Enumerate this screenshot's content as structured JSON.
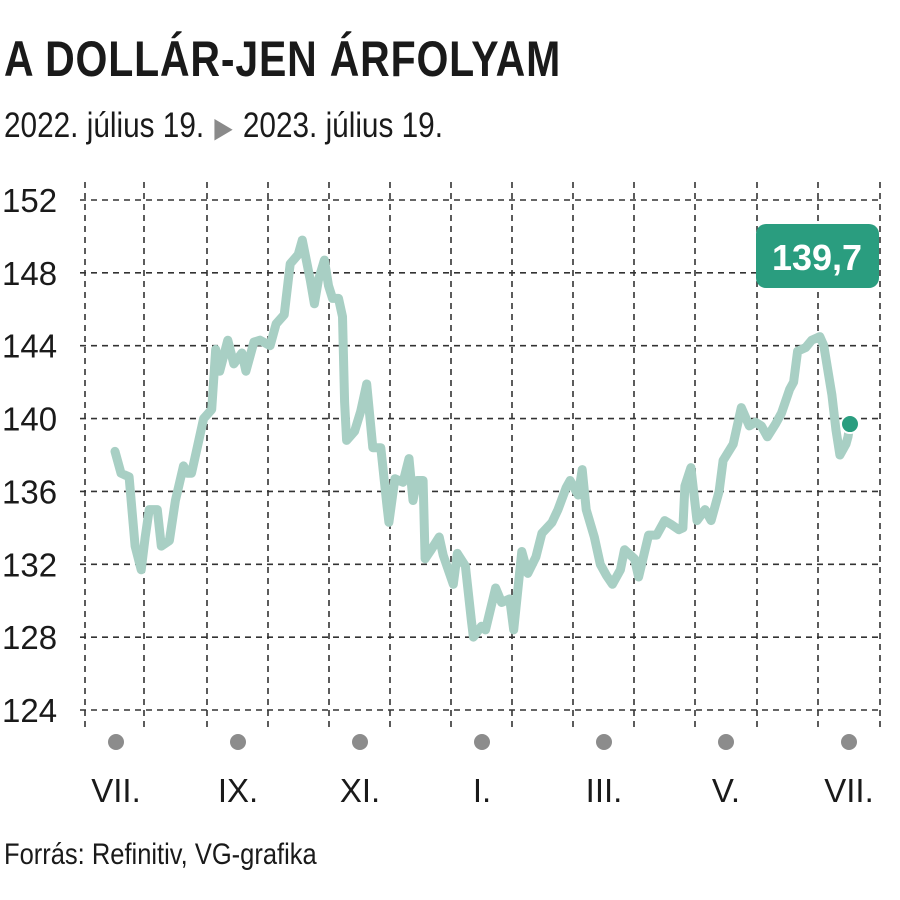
{
  "title": "A DOLLÁR-JEN ÁRFOLYAM",
  "subtitle": {
    "from": "2022. július 19.",
    "arrow": "▶",
    "to": "2023. július 19."
  },
  "source": "Forrás: Refinitiv, VG-grafika",
  "colors": {
    "line": "#a8cfc4",
    "accent": "#2a9d7f",
    "grid": "#333333",
    "month_dot": "#8c8c8c"
  },
  "chart_data": {
    "type": "line",
    "title": "A DOLLÁR-JEN ÁRFOLYAM",
    "xlabel": "",
    "ylabel": "",
    "ylim": [
      124,
      152
    ],
    "yticks": [
      152,
      148,
      144,
      140,
      136,
      132,
      128,
      124
    ],
    "ytick_labels": [
      "152",
      "148",
      "144",
      "140",
      "136",
      "132",
      "128",
      "124"
    ],
    "xtick_labels": [
      "VII.",
      "IX.",
      "XI.",
      "I.",
      "III.",
      "V.",
      "VII."
    ],
    "x_range": [
      "2022-07-19",
      "2023-07-19"
    ],
    "grid": true,
    "last_value_label": "139,7",
    "series": [
      {
        "values": [
          [
            "2022-07-19",
            138.2
          ],
          [
            "2022-07-22",
            137.0
          ],
          [
            "2022-07-26",
            136.8
          ],
          [
            "2022-07-29",
            133.0
          ],
          [
            "2022-08-01",
            131.7
          ],
          [
            "2022-08-03",
            133.5
          ],
          [
            "2022-08-05",
            135.0
          ],
          [
            "2022-08-09",
            135.0
          ],
          [
            "2022-08-11",
            133.0
          ],
          [
            "2022-08-15",
            133.3
          ],
          [
            "2022-08-18",
            135.5
          ],
          [
            "2022-08-22",
            137.4
          ],
          [
            "2022-08-24",
            137.0
          ],
          [
            "2022-08-26",
            137.0
          ],
          [
            "2022-08-29",
            138.5
          ],
          [
            "2022-09-01",
            140.0
          ],
          [
            "2022-09-05",
            140.5
          ],
          [
            "2022-09-07",
            143.8
          ],
          [
            "2022-09-09",
            142.6
          ],
          [
            "2022-09-13",
            144.3
          ],
          [
            "2022-09-16",
            143.0
          ],
          [
            "2022-09-20",
            143.6
          ],
          [
            "2022-09-22",
            142.6
          ],
          [
            "2022-09-26",
            144.2
          ],
          [
            "2022-09-29",
            144.3
          ],
          [
            "2022-10-04",
            144.0
          ],
          [
            "2022-10-07",
            145.2
          ],
          [
            "2022-10-11",
            145.7
          ],
          [
            "2022-10-14",
            148.5
          ],
          [
            "2022-10-18",
            149.0
          ],
          [
            "2022-10-20",
            149.8
          ],
          [
            "2022-10-24",
            147.6
          ],
          [
            "2022-10-26",
            146.3
          ],
          [
            "2022-10-28",
            147.6
          ],
          [
            "2022-10-31",
            148.7
          ],
          [
            "2022-11-02",
            147.3
          ],
          [
            "2022-11-04",
            146.6
          ],
          [
            "2022-11-07",
            146.6
          ],
          [
            "2022-11-09",
            145.6
          ],
          [
            "2022-11-10",
            140.9
          ],
          [
            "2022-11-11",
            138.8
          ],
          [
            "2022-11-15",
            139.3
          ],
          [
            "2022-11-18",
            140.4
          ],
          [
            "2022-11-21",
            141.9
          ],
          [
            "2022-11-24",
            138.4
          ],
          [
            "2022-11-28",
            138.4
          ],
          [
            "2022-12-01",
            135.3
          ],
          [
            "2022-12-02",
            134.3
          ],
          [
            "2022-12-05",
            136.7
          ],
          [
            "2022-12-07",
            136.6
          ],
          [
            "2022-12-09",
            136.5
          ],
          [
            "2022-12-12",
            137.8
          ],
          [
            "2022-12-14",
            135.5
          ],
          [
            "2022-12-16",
            136.6
          ],
          [
            "2022-12-19",
            136.6
          ],
          [
            "2022-12-20",
            132.3
          ],
          [
            "2022-12-23",
            132.8
          ],
          [
            "2022-12-27",
            133.5
          ],
          [
            "2022-12-29",
            132.5
          ],
          [
            "2023-01-03",
            130.9
          ],
          [
            "2023-01-05",
            132.6
          ],
          [
            "2023-01-09",
            131.9
          ],
          [
            "2023-01-12",
            128.9
          ],
          [
            "2023-01-13",
            128.0
          ],
          [
            "2023-01-17",
            128.6
          ],
          [
            "2023-01-19",
            128.4
          ],
          [
            "2023-01-24",
            130.7
          ],
          [
            "2023-01-27",
            129.9
          ],
          [
            "2023-01-31",
            130.1
          ],
          [
            "2023-02-02",
            128.4
          ],
          [
            "2023-02-06",
            132.7
          ],
          [
            "2023-02-09",
            131.5
          ],
          [
            "2023-02-13",
            132.4
          ],
          [
            "2023-02-16",
            133.7
          ],
          [
            "2023-02-21",
            134.3
          ],
          [
            "2023-02-24",
            135.0
          ],
          [
            "2023-02-28",
            136.2
          ],
          [
            "2023-03-02",
            136.6
          ],
          [
            "2023-03-06",
            135.8
          ],
          [
            "2023-03-08",
            137.2
          ],
          [
            "2023-03-10",
            135.0
          ],
          [
            "2023-03-14",
            133.5
          ],
          [
            "2023-03-17",
            132.0
          ],
          [
            "2023-03-20",
            131.4
          ],
          [
            "2023-03-23",
            130.9
          ],
          [
            "2023-03-27",
            131.7
          ],
          [
            "2023-03-29",
            132.8
          ],
          [
            "2023-04-03",
            132.3
          ],
          [
            "2023-04-05",
            131.3
          ],
          [
            "2023-04-10",
            133.6
          ],
          [
            "2023-04-14",
            133.6
          ],
          [
            "2023-04-18",
            134.4
          ],
          [
            "2023-04-21",
            134.2
          ],
          [
            "2023-04-25",
            133.9
          ],
          [
            "2023-04-27",
            134.0
          ],
          [
            "2023-04-28",
            136.3
          ],
          [
            "2023-05-01",
            137.3
          ],
          [
            "2023-05-04",
            134.4
          ],
          [
            "2023-05-08",
            135.0
          ],
          [
            "2023-05-11",
            134.4
          ],
          [
            "2023-05-15",
            136.0
          ],
          [
            "2023-05-17",
            137.7
          ],
          [
            "2023-05-22",
            138.6
          ],
          [
            "2023-05-26",
            140.6
          ],
          [
            "2023-05-30",
            139.6
          ],
          [
            "2023-06-02",
            139.8
          ],
          [
            "2023-06-05",
            139.6
          ],
          [
            "2023-06-08",
            139.0
          ],
          [
            "2023-06-12",
            139.7
          ],
          [
            "2023-06-15",
            140.3
          ],
          [
            "2023-06-19",
            141.6
          ],
          [
            "2023-06-21",
            142.0
          ],
          [
            "2023-06-23",
            143.7
          ],
          [
            "2023-06-27",
            143.9
          ],
          [
            "2023-06-30",
            144.3
          ],
          [
            "2023-07-04",
            144.5
          ],
          [
            "2023-07-06",
            144.0
          ],
          [
            "2023-07-10",
            141.3
          ],
          [
            "2023-07-12",
            139.4
          ],
          [
            "2023-07-14",
            138.0
          ],
          [
            "2023-07-17",
            138.6
          ],
          [
            "2023-07-18",
            139.0
          ],
          [
            "2023-07-19",
            139.7
          ]
        ]
      }
    ]
  }
}
